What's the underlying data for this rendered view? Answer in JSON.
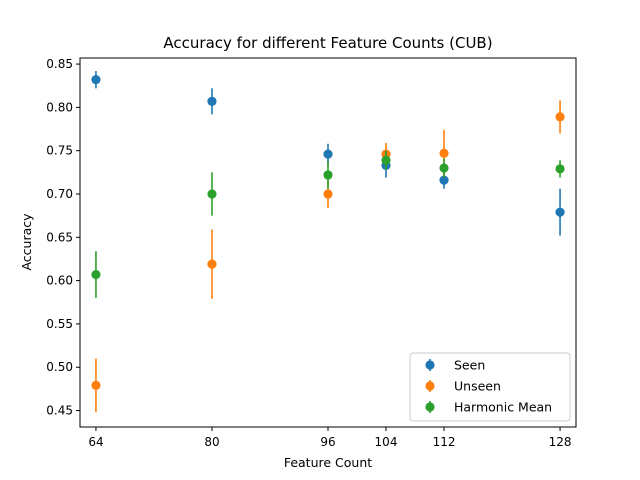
{
  "chart_data": {
    "type": "scatter",
    "title": "Accuracy for different Feature Counts (CUB)",
    "xlabel": "Feature Count",
    "ylabel": "Accuracy",
    "x": [
      64,
      80,
      96,
      104,
      112,
      128
    ],
    "xticks": [
      64,
      80,
      96,
      104,
      112,
      128
    ],
    "yticks": [
      0.45,
      0.5,
      0.55,
      0.6,
      0.65,
      0.7,
      0.75,
      0.8,
      0.85
    ],
    "xlim": [
      61.8,
      130.2
    ],
    "ylim": [
      0.431,
      0.857
    ],
    "grid": false,
    "legend_position": "lower-right",
    "series": [
      {
        "name": "Seen",
        "color": "#1f77b4",
        "values": [
          0.832,
          0.807,
          0.746,
          0.733,
          0.716,
          0.679
        ],
        "errors": [
          0.01,
          0.015,
          0.012,
          0.014,
          0.01,
          0.027
        ]
      },
      {
        "name": "Unseen",
        "color": "#ff7f0e",
        "values": [
          0.479,
          0.619,
          0.7,
          0.746,
          0.747,
          0.789
        ],
        "errors": [
          0.031,
          0.04,
          0.016,
          0.013,
          0.027,
          0.019
        ]
      },
      {
        "name": "Harmonic Mean",
        "color": "#2ca02c",
        "values": [
          0.607,
          0.7,
          0.722,
          0.739,
          0.73,
          0.729
        ],
        "errors": [
          0.027,
          0.025,
          0.016,
          0.011,
          0.011,
          0.01
        ]
      }
    ]
  }
}
